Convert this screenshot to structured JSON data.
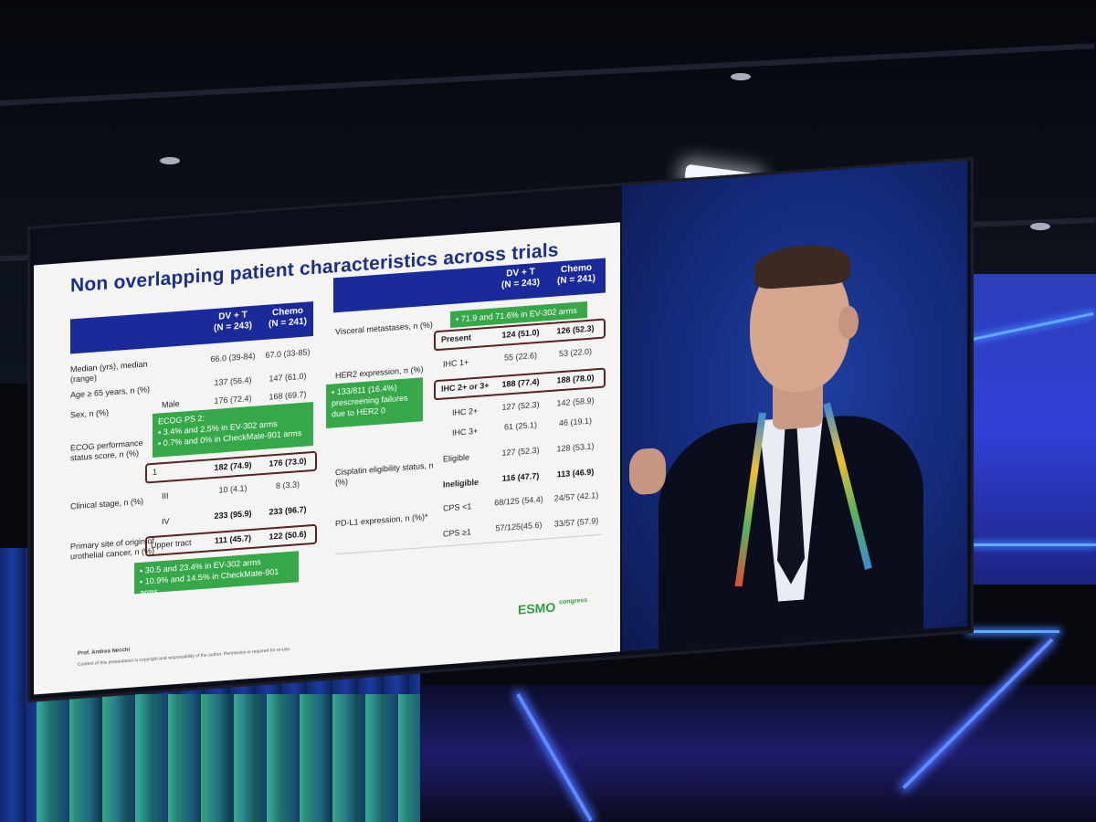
{
  "slide": {
    "title": "Non overlapping patient characteristics across trials",
    "left_table": {
      "headers": [
        "DV + T\n(N = 243)",
        "Chemo\n(N = 241)"
      ],
      "rows": [
        {
          "label": "Median (yrs), median (range)",
          "a": "66.0 (39-84)",
          "b": "67.0 (33-85)"
        },
        {
          "label": "Age ≥ 65 years, n (%)",
          "a": "137 (56.4)",
          "b": "147 (61.0)"
        },
        {
          "label": "Sex, n (%)",
          "sub": "Male",
          "a": "176 (72.4)",
          "b": "168 (69.7)"
        },
        {
          "label": "ECOG performance status score, n (%)",
          "sub": "1",
          "a": "182 (74.9)",
          "b": "176 (73.0)"
        },
        {
          "label": "Clinical stage, n (%)",
          "sub": "III",
          "a": "10 (4.1)",
          "b": "8 (3.3)"
        },
        {
          "label": "",
          "sub": "IV",
          "a": "233 (95.9)",
          "b": "233 (96.7)"
        },
        {
          "label": "Primary site of origin of urothelial cancer, n (%)",
          "sub": "Upper tract",
          "a": "111 (45.7)",
          "b": "122 (50.6)"
        }
      ],
      "notes": {
        "ecog_title": "ECOG PS 2:",
        "ecog_1": "▪ 3.4% and 2.5% in EV-302 arms",
        "ecog_2": "▪ 0.7% and 0% in CheckMate-901 arms",
        "site_1": "▪ 30.5 and 23.4% in EV-302 arms",
        "site_2": "▪ 10.9% and 14.5% in CheckMate-901 arms"
      }
    },
    "right_table": {
      "headers": [
        "DV + T\n(N = 243)",
        "Chemo\n(N = 241)"
      ],
      "rows": [
        {
          "label": "Visceral metastases, n (%)",
          "sub": "Present",
          "a": "124 (51.0)",
          "b": "126 (52.3)"
        },
        {
          "label": "HER2 expression, n (%)",
          "sub": "IHC 1+",
          "a": "55 (22.6)",
          "b": "53 (22.0)"
        },
        {
          "label": "",
          "sub": "IHC 2+ or 3+",
          "a": "188 (77.4)",
          "b": "188 (78.0)"
        },
        {
          "label": "",
          "sub": "IHC 2+",
          "a": "127 (52.3)",
          "b": "142 (58.9)"
        },
        {
          "label": "",
          "sub": "IHC 3+",
          "a": "61 (25.1)",
          "b": "46 (19.1)"
        },
        {
          "label": "Cisplatin eligibility status, n (%)",
          "sub": "Eligible",
          "a": "127 (52.3)",
          "b": "128 (53.1)"
        },
        {
          "label": "",
          "sub": "Ineligible",
          "a": "116 (47.7)",
          "b": "113 (46.9)"
        },
        {
          "label": "PD-L1 expression, n (%)*",
          "sub": "CPS <1",
          "a": "68/125 (54.4)",
          "b": "24/57 (42.1)"
        },
        {
          "label": "",
          "sub": "CPS ≥1",
          "a": "57/125(45.6)",
          "b": "33/57 (57.9)"
        }
      ],
      "notes": {
        "visceral": "▪ 71.9 and 71.6% in EV-302 arms",
        "her2_1": "▪ 133/811 (16.4%)",
        "her2_2": "prescreening failures",
        "her2_3": "due to HER2 0"
      }
    },
    "footer": {
      "author": "Prof. Andrea Necchi",
      "copyright": "Content of this presentation is copyright and responsibility of the author. Permission is required for re-use.",
      "logo": "ESMO",
      "logo_suffix": "congress"
    }
  },
  "colors": {
    "slide_title": "#1e2f8a",
    "table_header": "#1a2a9a",
    "note_green": "#36a84a",
    "highlight_box": "#5a2323",
    "stage_blue": "#3240d8"
  }
}
